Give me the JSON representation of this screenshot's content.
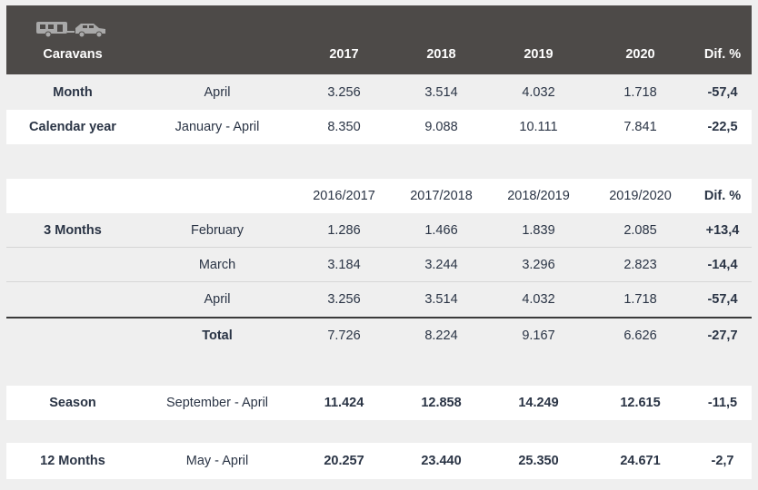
{
  "header": {
    "title": "Caravans",
    "years": [
      "2017",
      "2018",
      "2019",
      "2020"
    ],
    "diff_label": "Dif. %",
    "icons": [
      "caravan-icon",
      "car-icon"
    ]
  },
  "month": {
    "label": "Month",
    "period": "April",
    "values": [
      "3.256",
      "3.514",
      "4.032",
      "1.718"
    ],
    "diff": "-57,4"
  },
  "calendar_year": {
    "label": "Calendar year",
    "period": "January - April",
    "values": [
      "8.350",
      "9.088",
      "10.111",
      "7.841"
    ],
    "diff": "-22,5"
  },
  "three_months": {
    "headers": [
      "2016/2017",
      "2017/2018",
      "2018/2019",
      "2019/2020"
    ],
    "diff_label": "Dif. %",
    "label": "3 Months",
    "rows": [
      {
        "period": "February",
        "values": [
          "1.286",
          "1.466",
          "1.839",
          "2.085"
        ],
        "diff": "+13,4"
      },
      {
        "period": "March",
        "values": [
          "3.184",
          "3.244",
          "3.296",
          "2.823"
        ],
        "diff": "-14,4"
      },
      {
        "period": "April",
        "values": [
          "3.256",
          "3.514",
          "4.032",
          "1.718"
        ],
        "diff": "-57,4"
      }
    ],
    "total": {
      "label": "Total",
      "values": [
        "7.726",
        "8.224",
        "9.167",
        "6.626"
      ],
      "diff": "-27,7"
    }
  },
  "season": {
    "label": "Season",
    "period": "September - April",
    "values": [
      "11.424",
      "12.858",
      "14.249",
      "12.615"
    ],
    "diff": "-11,5"
  },
  "twelve_months": {
    "label": "12 Months",
    "period": "May - April",
    "values": [
      "20.257",
      "23.440",
      "25.350",
      "24.671"
    ],
    "diff": "-2,7"
  },
  "colors": {
    "header_bg": "#4d4a48",
    "text": "#2a3445",
    "page_bg": "#efefef"
  }
}
